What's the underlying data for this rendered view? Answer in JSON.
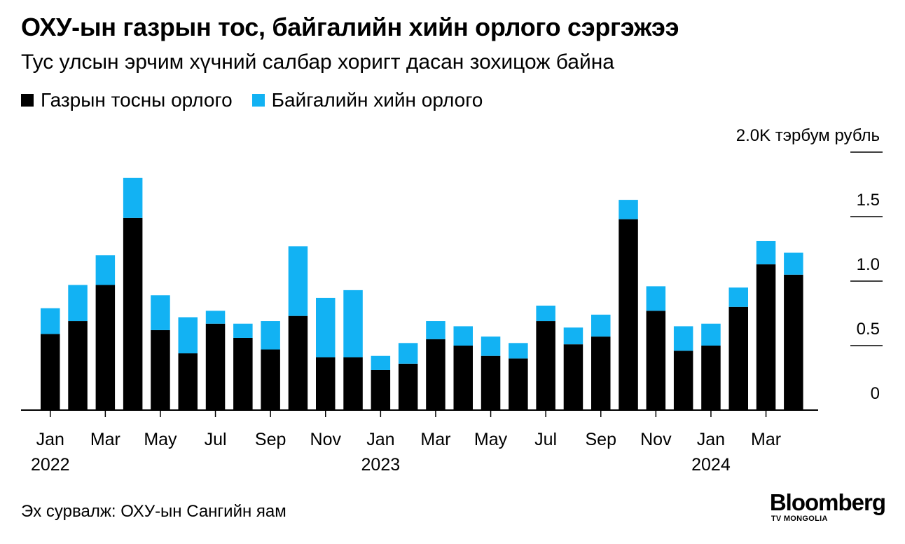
{
  "title": "ОХУ-ын газрын тос, байгалийн хийн орлого сэргэжээ",
  "subtitle": "Тус улсын эрчим хүчний салбар хоригт дасан зохицож байна",
  "source": "Эх сурвалж: ОХУ-ын Сангийн яам",
  "logo": {
    "main": "Bloomberg",
    "sub": "TV MONGOLIA"
  },
  "colors": {
    "oil": "#000000",
    "gas": "#12b2f3"
  },
  "chart_data": {
    "type": "bar",
    "stacked": true,
    "unit_label": "2.0K тэрбум рубль",
    "categories": [
      "2022-01",
      "2022-02",
      "2022-03",
      "2022-04",
      "2022-05",
      "2022-06",
      "2022-07",
      "2022-08",
      "2022-09",
      "2022-10",
      "2022-11",
      "2022-12",
      "2023-01",
      "2023-02",
      "2023-03",
      "2023-04",
      "2023-05",
      "2023-06",
      "2023-07",
      "2023-08",
      "2023-09",
      "2023-10",
      "2023-11",
      "2023-12",
      "2024-01",
      "2024-02",
      "2024-03",
      "2024-04"
    ],
    "series": [
      {
        "name": "Газрын тосны орлого",
        "color": "#000000",
        "values": [
          0.59,
          0.69,
          0.97,
          1.49,
          0.62,
          0.44,
          0.67,
          0.56,
          0.47,
          0.73,
          0.41,
          0.41,
          0.31,
          0.36,
          0.55,
          0.5,
          0.42,
          0.4,
          0.69,
          0.51,
          0.57,
          1.48,
          0.77,
          0.46,
          0.5,
          0.8,
          1.13,
          1.05
        ]
      },
      {
        "name": "Байгалийн хийн орлого",
        "color": "#12b2f3",
        "values": [
          0.2,
          0.28,
          0.23,
          0.31,
          0.27,
          0.28,
          0.1,
          0.11,
          0.22,
          0.54,
          0.46,
          0.52,
          0.11,
          0.16,
          0.14,
          0.15,
          0.15,
          0.12,
          0.12,
          0.13,
          0.17,
          0.15,
          0.19,
          0.19,
          0.17,
          0.15,
          0.18,
          0.17
        ]
      }
    ],
    "ylim": [
      0,
      2.0
    ],
    "y_ticks": [
      {
        "value": 0,
        "label": "0"
      },
      {
        "value": 0.5,
        "label": "0.5"
      },
      {
        "value": 1.0,
        "label": "1.0"
      },
      {
        "value": 1.5,
        "label": "1.5"
      },
      {
        "value": 2.0,
        "label": "2.0K тэрбум рубль"
      }
    ],
    "x_tick_labels": [
      {
        "index": 0,
        "label": "Jan",
        "year": "2022"
      },
      {
        "index": 2,
        "label": "Mar"
      },
      {
        "index": 4,
        "label": "May"
      },
      {
        "index": 6,
        "label": "Jul"
      },
      {
        "index": 8,
        "label": "Sep"
      },
      {
        "index": 10,
        "label": "Nov"
      },
      {
        "index": 12,
        "label": "Jan",
        "year": "2023"
      },
      {
        "index": 14,
        "label": "Mar"
      },
      {
        "index": 16,
        "label": "May"
      },
      {
        "index": 18,
        "label": "Jul"
      },
      {
        "index": 20,
        "label": "Sep"
      },
      {
        "index": 22,
        "label": "Nov"
      },
      {
        "index": 24,
        "label": "Jan",
        "year": "2024"
      },
      {
        "index": 26,
        "label": "Mar"
      }
    ],
    "legend_position": "top-left",
    "grid": false
  }
}
